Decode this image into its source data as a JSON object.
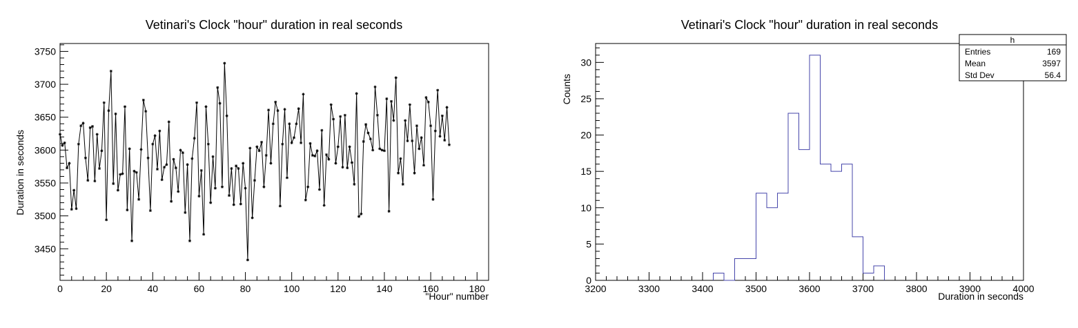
{
  "chart_data": [
    {
      "type": "line",
      "title": "Vetinari's Clock \"hour\" duration in real seconds",
      "xlabel": "\"Hour\" number",
      "ylabel": "Duration in seconds",
      "xlim": [
        0,
        185
      ],
      "ylim": [
        3402,
        3762
      ],
      "x_ticks": [
        0,
        20,
        40,
        60,
        80,
        100,
        120,
        140,
        160,
        180
      ],
      "y_ticks": [
        3450,
        3500,
        3550,
        3600,
        3650,
        3700,
        3750
      ],
      "grid": false,
      "marker": "star",
      "series": [
        {
          "x_start": 0,
          "x_step": 1,
          "values": [
            3624,
            3607,
            3611,
            3573,
            3580,
            3510,
            3539,
            3511,
            3609,
            3637,
            3641,
            3588,
            3554,
            3634,
            3636,
            3553,
            3624,
            3572,
            3599,
            3672,
            3494,
            3660,
            3720,
            3549,
            3655,
            3539,
            3563,
            3564,
            3666,
            3509,
            3602,
            3462,
            3568,
            3566,
            3525,
            3601,
            3676,
            3659,
            3588,
            3508,
            3609,
            3622,
            3571,
            3629,
            3555,
            3574,
            3578,
            3643,
            3522,
            3586,
            3573,
            3537,
            3600,
            3596,
            3505,
            3578,
            3462,
            3587,
            3618,
            3672,
            3530,
            3569,
            3472,
            3666,
            3609,
            3520,
            3590,
            3542,
            3695,
            3671,
            3544,
            3732,
            3652,
            3531,
            3572,
            3517,
            3576,
            3572,
            3518,
            3580,
            3542,
            3433,
            3603,
            3497,
            3554,
            3605,
            3599,
            3612,
            3544,
            3592,
            3661,
            3580,
            3640,
            3673,
            3660,
            3515,
            3609,
            3662,
            3558,
            3640,
            3611,
            3619,
            3640,
            3663,
            3611,
            3685,
            3524,
            3544,
            3610,
            3592,
            3591,
            3599,
            3540,
            3630,
            3516,
            3593,
            3586,
            3669,
            3647,
            3580,
            3605,
            3651,
            3574,
            3653,
            3573,
            3605,
            3581,
            3548,
            3686,
            3499,
            3503,
            3613,
            3639,
            3626,
            3617,
            3600,
            3696,
            3653,
            3602,
            3600,
            3599,
            3678,
            3507,
            3674,
            3645,
            3710,
            3565,
            3587,
            3548,
            3645,
            3614,
            3669,
            3614,
            3565,
            3637,
            3602,
            3619,
            3577,
            3680,
            3673,
            3637,
            3525,
            3629,
            3691,
            3621,
            3652,
            3615,
            3665,
            3608
          ]
        }
      ]
    },
    {
      "type": "bar",
      "title": "Vetinari's Clock \"hour\" duration in real seconds",
      "xlabel": "Duration in seconds",
      "ylabel": "Counts",
      "xlim": [
        3200,
        4000
      ],
      "ylim": [
        0,
        32.6
      ],
      "x_ticks": [
        3200,
        3300,
        3400,
        3500,
        3600,
        3700,
        3800,
        3900,
        4000
      ],
      "y_ticks": [
        0,
        5,
        10,
        15,
        20,
        25,
        30
      ],
      "grid": false,
      "bin_width": 20,
      "bin_edges_start": 3420,
      "counts": [
        1,
        0,
        3,
        3,
        12,
        10,
        12,
        23,
        18,
        31,
        16,
        15,
        16,
        6,
        1,
        2
      ],
      "color": "#4444aa",
      "stats": {
        "name": "h",
        "rows": [
          {
            "label": "Entries",
            "value": "169"
          },
          {
            "label": "Mean",
            "value": "3597"
          },
          {
            "label": "Std Dev",
            "value": "56.4"
          }
        ]
      }
    }
  ]
}
